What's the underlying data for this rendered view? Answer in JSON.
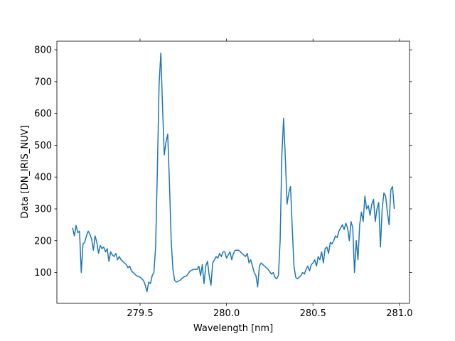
{
  "chart_data": {
    "type": "line",
    "xlabel": "Wavelength [nm]",
    "ylabel": "Data [DN_IRIS_NUV]",
    "xlim": [
      279.019,
      281.058
    ],
    "ylim": [
      3,
      827
    ],
    "xticks": [
      279.5,
      {
        "value": 280.0,
        "label": "280.0"
      },
      280.5,
      {
        "value": 281.0,
        "label": "281.0"
      }
    ],
    "yticks": [
      100,
      200,
      300,
      400,
      500,
      600,
      700,
      800
    ],
    "mirror_ticks": true,
    "grid": false,
    "series": [
      {
        "color": "#1f77b4",
        "x": [
          279.11,
          279.12,
          279.13,
          279.14,
          279.15,
          279.16,
          279.17,
          279.18,
          279.19,
          279.2,
          279.21,
          279.22,
          279.23,
          279.24,
          279.25,
          279.26,
          279.27,
          279.28,
          279.29,
          279.3,
          279.31,
          279.32,
          279.33,
          279.34,
          279.35,
          279.36,
          279.37,
          279.38,
          279.39,
          279.4,
          279.41,
          279.42,
          279.43,
          279.44,
          279.45,
          279.46,
          279.47,
          279.48,
          279.5,
          279.52,
          279.53,
          279.54,
          279.55,
          279.56,
          279.57,
          279.58,
          279.59,
          279.6,
          279.61,
          279.62,
          279.63,
          279.64,
          279.65,
          279.66,
          279.67,
          279.68,
          279.69,
          279.7,
          279.71,
          279.73,
          279.75,
          279.77,
          279.79,
          279.81,
          279.83,
          279.84,
          279.85,
          279.86,
          279.87,
          279.88,
          279.89,
          279.9,
          279.91,
          279.92,
          279.93,
          279.94,
          279.95,
          279.96,
          279.97,
          279.98,
          279.99,
          280.0,
          280.01,
          280.02,
          280.03,
          280.04,
          280.05,
          280.07,
          280.09,
          280.11,
          280.12,
          280.13,
          280.14,
          280.15,
          280.16,
          280.17,
          280.18,
          280.19,
          280.2,
          280.22,
          280.24,
          280.26,
          280.27,
          280.28,
          280.29,
          280.3,
          280.31,
          280.32,
          280.33,
          280.34,
          280.35,
          280.36,
          280.37,
          280.38,
          280.39,
          280.4,
          280.41,
          280.43,
          280.44,
          280.45,
          280.46,
          280.47,
          280.48,
          280.49,
          280.5,
          280.51,
          280.52,
          280.53,
          280.54,
          280.55,
          280.56,
          280.57,
          280.58,
          280.59,
          280.6,
          280.61,
          280.62,
          280.63,
          280.64,
          280.65,
          280.66,
          280.67,
          280.68,
          280.69,
          280.7,
          280.71,
          280.72,
          280.73,
          280.74,
          280.75,
          280.76,
          280.77,
          280.78,
          280.79,
          280.8,
          280.81,
          280.82,
          280.83,
          280.84,
          280.85,
          280.86,
          280.87,
          280.88,
          280.89,
          280.9,
          280.91,
          280.92,
          280.93,
          280.94,
          280.95,
          280.96,
          280.97
        ],
        "values": [
          240,
          215,
          248,
          225,
          230,
          100,
          190,
          195,
          215,
          230,
          220,
          205,
          170,
          215,
          195,
          160,
          185,
          175,
          180,
          165,
          175,
          135,
          165,
          155,
          150,
          160,
          140,
          150,
          140,
          135,
          130,
          125,
          115,
          120,
          105,
          100,
          95,
          90,
          85,
          75,
          60,
          40,
          70,
          65,
          90,
          100,
          180,
          420,
          690,
          790,
          620,
          470,
          510,
          535,
          380,
          200,
          110,
          75,
          70,
          75,
          85,
          90,
          105,
          110,
          110,
          120,
          90,
          125,
          65,
          120,
          135,
          90,
          60,
          130,
          140,
          150,
          145,
          160,
          150,
          165,
          165,
          145,
          155,
          165,
          140,
          160,
          170,
          170,
          160,
          150,
          160,
          130,
          140,
          120,
          100,
          90,
          55,
          120,
          130,
          120,
          110,
          95,
          100,
          85,
          80,
          90,
          200,
          470,
          585,
          460,
          315,
          350,
          370,
          240,
          120,
          85,
          80,
          90,
          100,
          95,
          110,
          120,
          105,
          125,
          130,
          140,
          120,
          150,
          140,
          165,
          130,
          175,
          180,
          160,
          195,
          190,
          200,
          215,
          210,
          230,
          240,
          250,
          235,
          255,
          240,
          200,
          260,
          240,
          100,
          200,
          140,
          250,
          290,
          260,
          340,
          300,
          310,
          280,
          315,
          330,
          260,
          300,
          320,
          180,
          300,
          350,
          340,
          290,
          250,
          360,
          370,
          300
        ]
      }
    ]
  }
}
